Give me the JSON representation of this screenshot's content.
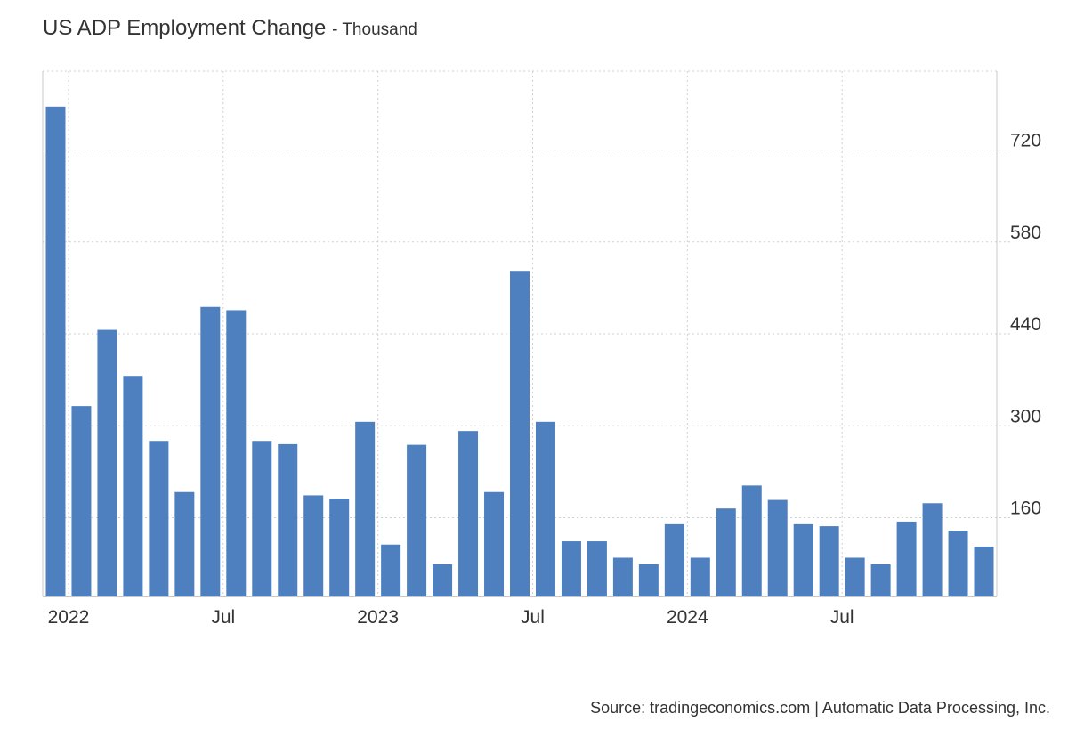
{
  "title": "US ADP Employment Change",
  "subtitle": "- Thousand",
  "source": "Source: tradingeconomics.com | Automatic Data Processing, Inc.",
  "colors": {
    "bar": "#4e80c0",
    "grid": "#d0d0d0",
    "axis": "#c8c8c8"
  },
  "chart_data": {
    "type": "bar",
    "ylim": [
      40,
      840
    ],
    "yticks": [
      160,
      300,
      440,
      580,
      720
    ],
    "grid": true,
    "xticks": [
      {
        "label": "2022",
        "index": 1
      },
      {
        "label": "Jul",
        "index": 7
      },
      {
        "label": "2023",
        "index": 13
      },
      {
        "label": "Jul",
        "index": 19
      },
      {
        "label": "2024",
        "index": 25
      },
      {
        "label": "Jul",
        "index": 31
      }
    ],
    "categories": [
      "2021-12",
      "2022-01",
      "2022-02",
      "2022-03",
      "2022-04",
      "2022-05",
      "2022-06",
      "2022-07",
      "2022-08",
      "2022-09",
      "2022-10",
      "2022-11",
      "2022-12",
      "2023-01",
      "2023-02",
      "2023-03",
      "2023-04",
      "2023-05",
      "2023-06",
      "2023-07",
      "2023-08",
      "2023-09",
      "2023-10",
      "2023-11",
      "2023-12",
      "2024-01",
      "2024-02",
      "2024-03",
      "2024-04",
      "2024-05",
      "2024-06",
      "2024-07",
      "2024-08",
      "2024-09",
      "2024-10",
      "2024-11",
      "2024-12"
    ],
    "values": [
      786,
      330,
      446,
      376,
      277,
      199,
      481,
      476,
      277,
      272,
      194,
      189,
      306,
      119,
      271,
      89,
      292,
      199,
      536,
      306,
      124,
      124,
      99,
      89,
      150,
      99,
      174,
      209,
      187,
      150,
      147,
      99,
      89,
      154,
      182,
      140,
      116
    ]
  }
}
